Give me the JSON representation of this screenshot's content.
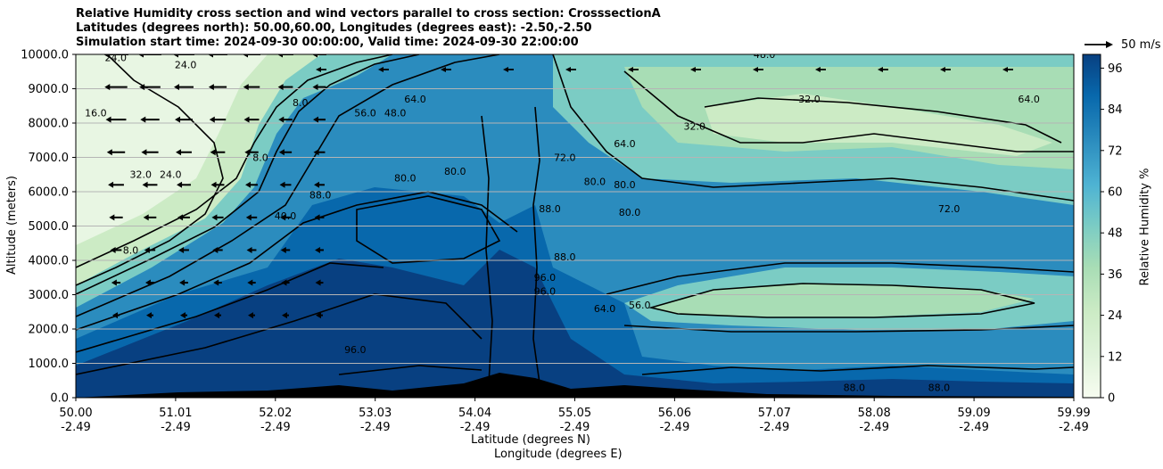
{
  "chart_data": {
    "type": "contourf",
    "title_lines": [
      "Relative Humidity cross section and wind vectors parallel to cross section: CrosssectionA",
      "Latitudes (degrees north): 50.00,60.00, Longitudes (degrees east): -2.50,-2.50",
      "Simulation start time: 2024-09-30 00:00:00, Valid time: 2024-09-30 22:00:00"
    ],
    "ylabel": "Altitude (meters)",
    "xlabel_lines": [
      "Latitude (degrees N)",
      "Longitude (degrees E)"
    ],
    "y_ticks": [
      0,
      1000,
      2000,
      3000,
      4000,
      5000,
      6000,
      7000,
      8000,
      9000,
      10000
    ],
    "y_tick_labels": [
      "0.0",
      "1000.0",
      "2000.0",
      "3000.0",
      "4000.0",
      "5000.0",
      "6000.0",
      "7000.0",
      "8000.0",
      "9000.0",
      "10000.0"
    ],
    "ylim": [
      0,
      10000
    ],
    "x_tick_labels_lat": [
      "50.00",
      "51.01",
      "52.02",
      "53.03",
      "54.04",
      "55.05",
      "56.06",
      "57.07",
      "58.08",
      "59.09",
      "59.99"
    ],
    "x_tick_labels_lon": [
      "-2.49",
      "-2.49",
      "-2.49",
      "-2.49",
      "-2.49",
      "-2.49",
      "-2.49",
      "-2.49",
      "-2.49",
      "-2.49",
      "-2.49"
    ],
    "colorbar": {
      "label": "Relative Humidity %",
      "ticks": [
        0,
        12,
        24,
        36,
        48,
        60,
        72,
        84,
        96
      ],
      "range": [
        0,
        100
      ],
      "colormap": "GnBu"
    },
    "quiver_key": "50 m/s",
    "contour_labels": [
      {
        "v": "24.0",
        "x": 0.04,
        "y": 9.8
      },
      {
        "v": "24.0",
        "x": 0.11,
        "y": 9.6
      },
      {
        "v": "16.0",
        "x": 0.02,
        "y": 8.2
      },
      {
        "v": "32.0",
        "x": 0.065,
        "y": 6.4
      },
      {
        "v": "24.0",
        "x": 0.095,
        "y": 6.4
      },
      {
        "v": "8.0",
        "x": 0.185,
        "y": 6.9
      },
      {
        "v": "8.0",
        "x": 0.225,
        "y": 8.5
      },
      {
        "v": "40.0",
        "x": 0.21,
        "y": 5.2
      },
      {
        "v": "8.0",
        "x": 0.055,
        "y": 4.2
      },
      {
        "v": "56.0",
        "x": 0.29,
        "y": 8.2
      },
      {
        "v": "48.0",
        "x": 0.32,
        "y": 8.2
      },
      {
        "v": "64.0",
        "x": 0.34,
        "y": 8.6
      },
      {
        "v": "80.0",
        "x": 0.33,
        "y": 6.3
      },
      {
        "v": "80.0",
        "x": 0.38,
        "y": 6.5
      },
      {
        "v": "88.0",
        "x": 0.245,
        "y": 5.8
      },
      {
        "v": "88.0",
        "x": 0.475,
        "y": 5.4
      },
      {
        "v": "80.0",
        "x": 0.52,
        "y": 6.2
      },
      {
        "v": "80.0",
        "x": 0.55,
        "y": 6.1
      },
      {
        "v": "80.0",
        "x": 0.555,
        "y": 5.3
      },
      {
        "v": "72.0",
        "x": 0.49,
        "y": 6.9
      },
      {
        "v": "64.0",
        "x": 0.55,
        "y": 7.3
      },
      {
        "v": "32.0",
        "x": 0.62,
        "y": 7.8
      },
      {
        "v": "32.0",
        "x": 0.735,
        "y": 8.6
      },
      {
        "v": "72.0",
        "x": 0.875,
        "y": 5.4
      },
      {
        "v": "64.0",
        "x": 0.955,
        "y": 8.6
      },
      {
        "v": "48.0",
        "x": 0.69,
        "y": 9.9
      },
      {
        "v": "88.0",
        "x": 0.49,
        "y": 4.0
      },
      {
        "v": "96.0",
        "x": 0.47,
        "y": 3.4
      },
      {
        "v": "96.0",
        "x": 0.47,
        "y": 3.0
      },
      {
        "v": "64.0",
        "x": 0.53,
        "y": 2.5
      },
      {
        "v": "56.0",
        "x": 0.565,
        "y": 2.6
      },
      {
        "v": "96.0",
        "x": 0.28,
        "y": 1.3
      },
      {
        "v": "88.0",
        "x": 0.78,
        "y": 0.2
      },
      {
        "v": "88.0",
        "x": 0.865,
        "y": 0.2
      }
    ]
  }
}
